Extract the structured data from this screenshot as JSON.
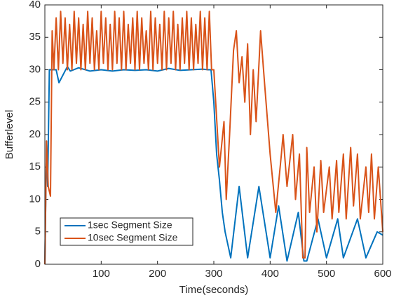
{
  "chart_data": {
    "type": "line",
    "xlabel": "Time(seconds)",
    "ylabel": "Bufferlevel",
    "xlim": [
      0,
      600
    ],
    "xticks": [
      100,
      200,
      300,
      400,
      500,
      600
    ],
    "ylim": [
      0,
      40
    ],
    "yticks": [
      0,
      5,
      10,
      15,
      20,
      25,
      30,
      35,
      40
    ],
    "legend": "lower left",
    "series": [
      {
        "name": "1sec Segment Size",
        "color": "#0072BD",
        "x": [
          0,
          3,
          5,
          8,
          20,
          25,
          40,
          45,
          60,
          80,
          100,
          120,
          140,
          160,
          180,
          200,
          220,
          240,
          260,
          280,
          290,
          295,
          300,
          305,
          310,
          315,
          320,
          325,
          330,
          345,
          360,
          380,
          400,
          415,
          430,
          450,
          460,
          465,
          485,
          500,
          520,
          530,
          555,
          570,
          590,
          600
        ],
        "values": [
          0,
          19,
          12,
          30,
          30,
          28,
          30.5,
          29.8,
          30.3,
          29.8,
          30,
          29.8,
          30,
          29.9,
          30,
          29.8,
          30.2,
          29.9,
          30,
          30.1,
          30,
          30,
          25,
          17,
          13,
          8,
          5,
          3,
          1,
          12,
          1,
          12,
          1,
          9,
          0.5,
          8,
          0.5,
          0.5,
          7,
          1,
          7,
          1,
          7,
          1,
          5,
          4.5
        ]
      },
      {
        "name": "10sec Segment Size",
        "color": "#D95319",
        "x": [
          0,
          3,
          6,
          10,
          13,
          16,
          20,
          24,
          28,
          32,
          36,
          40,
          44,
          48,
          52,
          56,
          60,
          64,
          68,
          72,
          76,
          80,
          84,
          88,
          92,
          96,
          100,
          104,
          108,
          112,
          116,
          120,
          124,
          128,
          132,
          136,
          140,
          144,
          148,
          152,
          156,
          160,
          164,
          168,
          172,
          176,
          180,
          184,
          188,
          192,
          196,
          200,
          204,
          208,
          212,
          216,
          220,
          224,
          228,
          232,
          236,
          240,
          244,
          248,
          252,
          256,
          260,
          264,
          268,
          272,
          276,
          280,
          284,
          288,
          292,
          296,
          300,
          310,
          318,
          322,
          328,
          335,
          340,
          345,
          350,
          355,
          360,
          365,
          370,
          375,
          383,
          390,
          400,
          410,
          420,
          423,
          430,
          440,
          445,
          452,
          458,
          462,
          465,
          470,
          478,
          483,
          490,
          495,
          505,
          510,
          518,
          522,
          530,
          535,
          543,
          548,
          555,
          560,
          570,
          575,
          580,
          585,
          592,
          600
        ],
        "values": [
          0,
          19,
          12,
          10.5,
          36,
          30,
          38,
          30,
          39,
          31,
          38,
          30,
          37,
          30,
          39,
          31,
          38,
          30,
          37,
          30,
          39,
          31,
          38,
          30,
          36,
          30,
          39,
          31,
          38,
          30,
          37,
          30,
          39,
          31,
          38,
          30,
          39,
          30,
          37,
          31,
          38,
          30,
          39,
          30,
          38,
          31,
          36,
          30,
          39,
          30,
          38,
          31,
          37,
          30,
          39,
          30,
          38,
          31,
          39,
          30,
          37,
          30,
          38,
          31,
          39,
          30,
          38,
          30,
          37,
          31,
          39,
          30,
          38,
          30,
          39,
          30,
          30,
          15,
          22,
          10,
          20,
          33,
          36,
          28,
          32,
          25,
          34,
          20,
          30,
          22,
          36,
          28,
          17,
          8,
          17,
          20,
          12,
          20,
          10,
          17,
          1,
          1,
          18,
          8,
          15,
          5,
          16,
          8,
          15,
          7,
          16,
          8,
          17,
          7,
          18,
          9,
          17,
          7,
          15,
          8,
          17,
          7,
          15,
          5
        ]
      }
    ]
  }
}
